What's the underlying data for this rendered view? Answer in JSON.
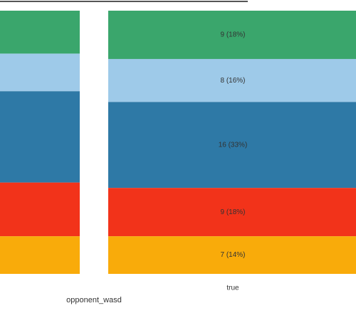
{
  "chart_data": {
    "type": "stacked-percent-bar",
    "x_label": "opponent_wasd",
    "categories": [
      null,
      "true"
    ],
    "series": [
      {
        "color": "#3aa66c",
        "values": [
          8,
          9
        ],
        "value_labels": [
          null,
          "9 (18%)"
        ]
      },
      {
        "color": "#9ecae9",
        "values": [
          7,
          8
        ],
        "value_labels": [
          null,
          "8 (16%)"
        ]
      },
      {
        "color": "#2e79a6",
        "values": [
          17,
          16
        ],
        "value_labels": [
          null,
          "16 (33%)"
        ]
      },
      {
        "color": "#f2331a",
        "values": [
          10,
          9
        ],
        "value_labels": [
          null,
          "9 (18%)"
        ]
      },
      {
        "color": "#f9ab0a",
        "values": [
          7,
          7
        ],
        "value_labels": [
          null,
          "7 (14%)"
        ]
      }
    ]
  }
}
